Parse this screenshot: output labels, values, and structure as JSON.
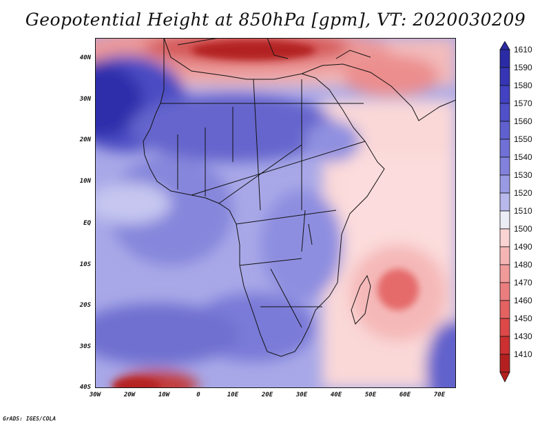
{
  "title": "Geopotential Height at 850hPa [gpm], VT: 2020030209",
  "footer": "GrADS: IGES/COLA",
  "axes": {
    "lat_labels": [
      "40N",
      "30N",
      "20N",
      "10N",
      "EQ",
      "10S",
      "20S",
      "30S",
      "40S"
    ],
    "lon_labels": [
      "30W",
      "20W",
      "10W",
      "0",
      "10E",
      "20E",
      "30E",
      "40E",
      "50E",
      "60E",
      "70E"
    ]
  },
  "legend": {
    "levels": [
      "1610",
      "1590",
      "1580",
      "1570",
      "1560",
      "1550",
      "1540",
      "1530",
      "1520",
      "1510",
      "1500",
      "1490",
      "1480",
      "1470",
      "1460",
      "1450",
      "1430",
      "1410"
    ],
    "colors": [
      "#2b2ba5",
      "#3535b5",
      "#4242c2",
      "#5050c8",
      "#6060cf",
      "#7070d6",
      "#8282dd",
      "#9a9ae4",
      "#b8b8ec",
      "#ececf7",
      "#fad3d3",
      "#f6b5b5",
      "#f09a9a",
      "#ea7e7e",
      "#e46262",
      "#dd4848",
      "#cc3030",
      "#b42020"
    ]
  },
  "colors": {
    "background": "#ffffff",
    "low_height": "#b42020",
    "high_height": "#2b2ba5"
  }
}
